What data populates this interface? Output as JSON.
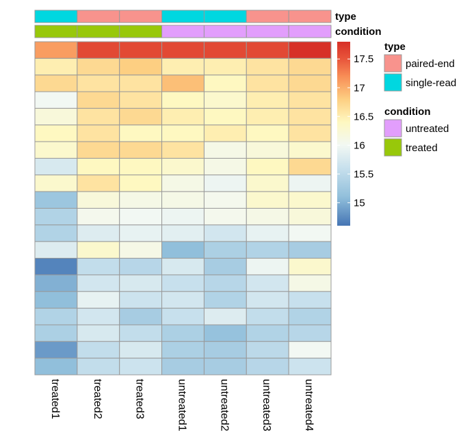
{
  "chart_data": {
    "type": "heatmap",
    "columns": [
      "treated1",
      "treated2",
      "treated3",
      "untreated1",
      "untreated2",
      "untreated3",
      "untreated4"
    ],
    "annotations": [
      {
        "name": "type",
        "values": [
          "single-read",
          "paired-end",
          "paired-end",
          "single-read",
          "single-read",
          "paired-end",
          "paired-end"
        ]
      },
      {
        "name": "condition",
        "values": [
          "treated",
          "treated",
          "treated",
          "untreated",
          "untreated",
          "untreated",
          "untreated"
        ]
      }
    ],
    "matrix": [
      [
        17.1,
        17.6,
        17.6,
        17.6,
        17.6,
        17.6,
        17.8
      ],
      [
        16.5,
        16.7,
        16.8,
        16.5,
        16.5,
        16.6,
        16.7
      ],
      [
        16.7,
        16.6,
        16.6,
        16.9,
        16.4,
        16.6,
        16.7
      ],
      [
        16.0,
        16.7,
        16.6,
        16.4,
        16.3,
        16.5,
        16.6
      ],
      [
        16.2,
        16.6,
        16.7,
        16.5,
        16.4,
        16.5,
        16.6
      ],
      [
        16.4,
        16.6,
        16.4,
        16.4,
        16.5,
        16.4,
        16.6
      ],
      [
        16.3,
        16.7,
        16.7,
        16.6,
        16.1,
        16.2,
        16.3
      ],
      [
        15.75,
        16.4,
        16.4,
        16.3,
        16.1,
        16.4,
        16.7
      ],
      [
        16.3,
        16.6,
        16.4,
        16.1,
        15.95,
        16.3,
        15.95
      ],
      [
        15.2,
        16.2,
        16.1,
        16.1,
        16.05,
        16.3,
        16.3
      ],
      [
        15.4,
        16.05,
        16.0,
        15.95,
        16.05,
        16.1,
        16.2
      ],
      [
        15.4,
        15.8,
        15.9,
        15.85,
        15.7,
        15.9,
        16.0
      ],
      [
        15.8,
        16.3,
        16.1,
        15.1,
        15.35,
        15.4,
        15.3
      ],
      [
        14.7,
        15.55,
        15.45,
        15.75,
        15.3,
        15.95,
        16.3
      ],
      [
        15.0,
        15.7,
        15.75,
        15.6,
        15.45,
        15.7,
        16.1
      ],
      [
        15.1,
        15.9,
        15.65,
        15.7,
        15.4,
        15.7,
        15.6
      ],
      [
        15.4,
        15.7,
        15.3,
        15.6,
        15.8,
        15.55,
        15.4
      ],
      [
        15.35,
        15.75,
        15.55,
        15.35,
        15.15,
        15.4,
        15.45
      ],
      [
        14.85,
        15.55,
        15.75,
        15.35,
        15.3,
        15.5,
        16.0
      ],
      [
        15.1,
        15.55,
        15.65,
        15.3,
        15.3,
        15.45,
        15.65
      ]
    ],
    "color_scale": {
      "min": 14.6,
      "max": 17.8,
      "ticks": [
        "15",
        "15.5",
        "16",
        "16.5",
        "17",
        "17.5"
      ],
      "tick_values": [
        15,
        15.5,
        16,
        16.5,
        17,
        17.5
      ],
      "stops": [
        {
          "v": 14.6,
          "c": "#4575b4"
        },
        {
          "v": 15.1,
          "c": "#91bfdb"
        },
        {
          "v": 15.6,
          "c": "#c7e0ed"
        },
        {
          "v": 16.0,
          "c": "#f2f8f3"
        },
        {
          "v": 16.4,
          "c": "#fef8c1"
        },
        {
          "v": 16.8,
          "c": "#fdcf82"
        },
        {
          "v": 17.2,
          "c": "#f88d56"
        },
        {
          "v": 17.5,
          "c": "#e8553b"
        },
        {
          "v": 17.8,
          "c": "#d73027"
        }
      ]
    },
    "legends": [
      {
        "title": "type",
        "items": [
          {
            "label": "paired-end",
            "color": "#f8938d"
          },
          {
            "label": "single-read",
            "color": "#00d7e0"
          }
        ]
      },
      {
        "title": "condition",
        "items": [
          {
            "label": "untreated",
            "color": "#e29efc"
          },
          {
            "label": "treated",
            "color": "#98c80a"
          }
        ]
      }
    ],
    "grid": true
  }
}
